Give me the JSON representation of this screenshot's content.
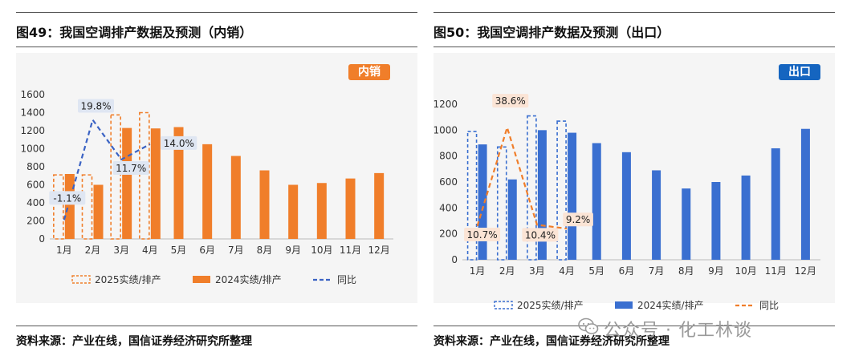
{
  "figures": [
    {
      "title": "图49：我国空调排产数据及预测（内销）",
      "badge": "内销",
      "source": "资料来源：产业在线，国信证券经济研究所整理",
      "legend": {
        "series_2025": "2025实绩/排产",
        "series_2024": "2024实绩/排产",
        "yoy": "同比"
      },
      "colors": {
        "accent": "#f07e2a",
        "line": "#3b63c4"
      }
    },
    {
      "title": "图50：我国空调排产数据及预测（出口）",
      "badge": "出口",
      "source": "资料来源：产业在线，国信证券经济研究所整理",
      "legend": {
        "series_2025": "2025实绩/排产",
        "series_2024": "2024实绩/排产",
        "yoy": "同比"
      },
      "colors": {
        "accent": "#3a6fd0",
        "line": "#f07e2a"
      }
    }
  ],
  "watermark": "公众号 · 化工林谈",
  "chart_data": [
    {
      "type": "bar",
      "categories": [
        "1月",
        "2月",
        "3月",
        "4月",
        "5月",
        "6月",
        "7月",
        "8月",
        "9月",
        "10月",
        "11月",
        "12月"
      ],
      "ylim": [
        0,
        1600
      ],
      "yticks": [
        0,
        200,
        400,
        600,
        800,
        1000,
        1200,
        1400,
        1600
      ],
      "series": [
        {
          "name": "2025实绩/排产",
          "style": "dashed-outline",
          "values": [
            710,
            710,
            1375,
            1400,
            null,
            null,
            null,
            null,
            null,
            null,
            null,
            null
          ]
        },
        {
          "name": "2024实绩/排产",
          "style": "solid",
          "values": [
            720,
            600,
            1230,
            1225,
            1240,
            1050,
            920,
            760,
            600,
            620,
            670,
            730
          ]
        }
      ],
      "line_series": {
        "name": "同比",
        "values": [
          -1.1,
          19.8,
          11.7,
          14.0
        ],
        "plot_y": [
          210,
          1320,
          880,
          1050
        ],
        "labels": [
          "-1.1%",
          "19.8%",
          "11.7%",
          "14.0%"
        ]
      }
    },
    {
      "type": "bar",
      "categories": [
        "1月",
        "2月",
        "3月",
        "4月",
        "5月",
        "6月",
        "7月",
        "8月",
        "9月",
        "10月",
        "11月",
        "12月"
      ],
      "ylim": [
        0,
        1200
      ],
      "yticks": [
        0,
        200,
        400,
        600,
        800,
        1000,
        1200
      ],
      "series": [
        {
          "name": "2025实绩/排产",
          "style": "dashed-outline",
          "values": [
            990,
            870,
            1110,
            1070,
            null,
            null,
            null,
            null,
            null,
            null,
            null,
            null
          ]
        },
        {
          "name": "2024实绩/排产",
          "style": "solid",
          "values": [
            890,
            620,
            1000,
            980,
            900,
            830,
            690,
            550,
            600,
            650,
            860,
            1010
          ]
        }
      ],
      "line_series": {
        "name": "同比",
        "values": [
          10.7,
          38.6,
          10.4,
          9.2
        ],
        "plot_y": [
          260,
          1020,
          270,
          240
        ],
        "labels": [
          "10.7%",
          "38.6%",
          "10.4%",
          "9.2%"
        ]
      }
    }
  ]
}
